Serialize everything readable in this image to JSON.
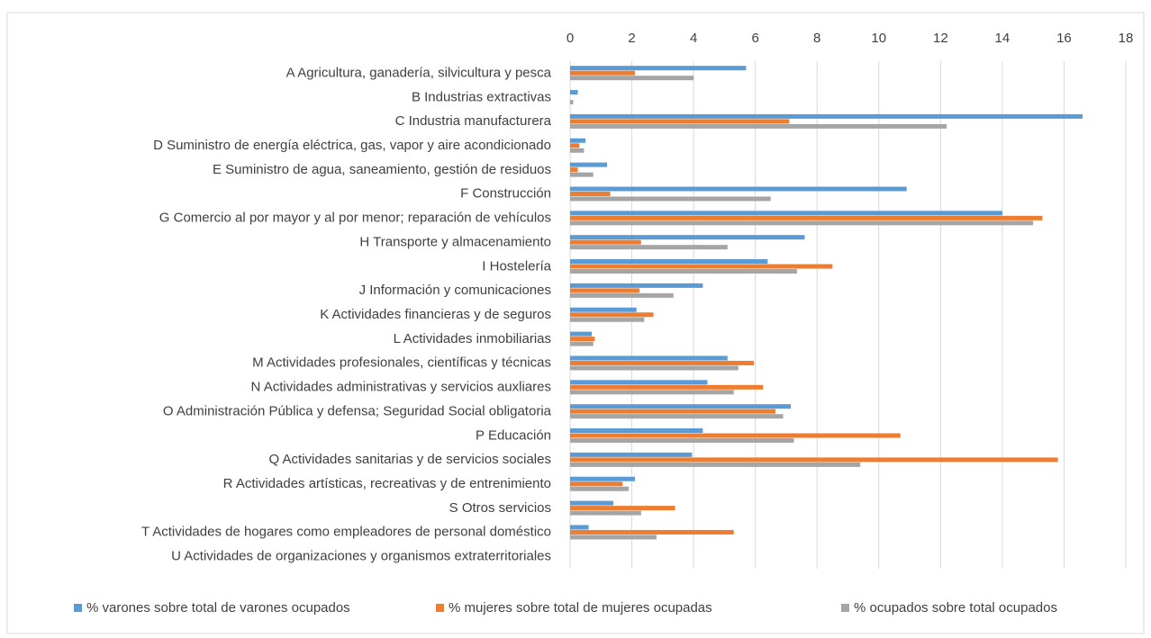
{
  "chart_data": {
    "type": "bar",
    "orientation": "horizontal",
    "categories": [
      "A Agricultura, ganadería, silvicultura y pesca",
      "B Industrias extractivas",
      "C Industria manufacturera",
      "D Suministro de energía eléctrica, gas, vapor y aire acondicionado",
      "E Suministro de agua, saneamiento, gestión de residuos",
      "F Construcción",
      "G Comercio al por mayor y al por menor; reparación de vehículos",
      "H Transporte y almacenamiento",
      "I Hostelería",
      "J Información y comunicaciones",
      "K Actividades financieras y de seguros",
      "L Actividades inmobiliarias",
      "M Actividades profesionales, científicas y técnicas",
      "N Actividades administrativas y servicios auxliares",
      "O Administración Pública y defensa; Seguridad Social obligatoria",
      "P Educación",
      "Q Actividades sanitarias y de servicios sociales",
      "R Actividades artísticas, recreativas y de entrenimiento",
      "S Otros servicios",
      "T Actividades de hogares como empleadores de personal doméstico",
      "U Actividades de organizaciones y organismos extraterritoriales"
    ],
    "series": [
      {
        "name": "% varones sobre total de varones ocupados",
        "color": "#5b9bd5",
        "values": [
          5.7,
          0.25,
          16.6,
          0.5,
          1.2,
          10.9,
          14.0,
          7.6,
          6.4,
          4.3,
          2.15,
          0.7,
          5.1,
          4.45,
          7.15,
          4.3,
          3.95,
          2.1,
          1.4,
          0.6,
          0
        ]
      },
      {
        "name": "% mujeres sobre total de mujeres ocupadas",
        "color": "#ed7d31",
        "values": [
          2.1,
          0,
          7.1,
          0.3,
          0.25,
          1.3,
          15.3,
          2.3,
          8.5,
          2.25,
          2.7,
          0.8,
          5.95,
          6.25,
          6.65,
          10.7,
          15.8,
          1.7,
          3.4,
          5.3,
          0
        ]
      },
      {
        "name": "% ocupados sobre total ocupados",
        "color": "#a5a5a5",
        "values": [
          4.0,
          0.1,
          12.2,
          0.45,
          0.75,
          6.5,
          15.0,
          5.1,
          7.35,
          3.35,
          2.4,
          0.75,
          5.45,
          5.3,
          6.9,
          7.25,
          9.4,
          1.9,
          2.3,
          2.8,
          0
        ]
      }
    ],
    "xlim": [
      0,
      18
    ],
    "xticks": [
      0,
      2,
      4,
      6,
      8,
      10,
      12,
      14,
      16,
      18
    ],
    "grid": true,
    "legend": "bottom"
  }
}
